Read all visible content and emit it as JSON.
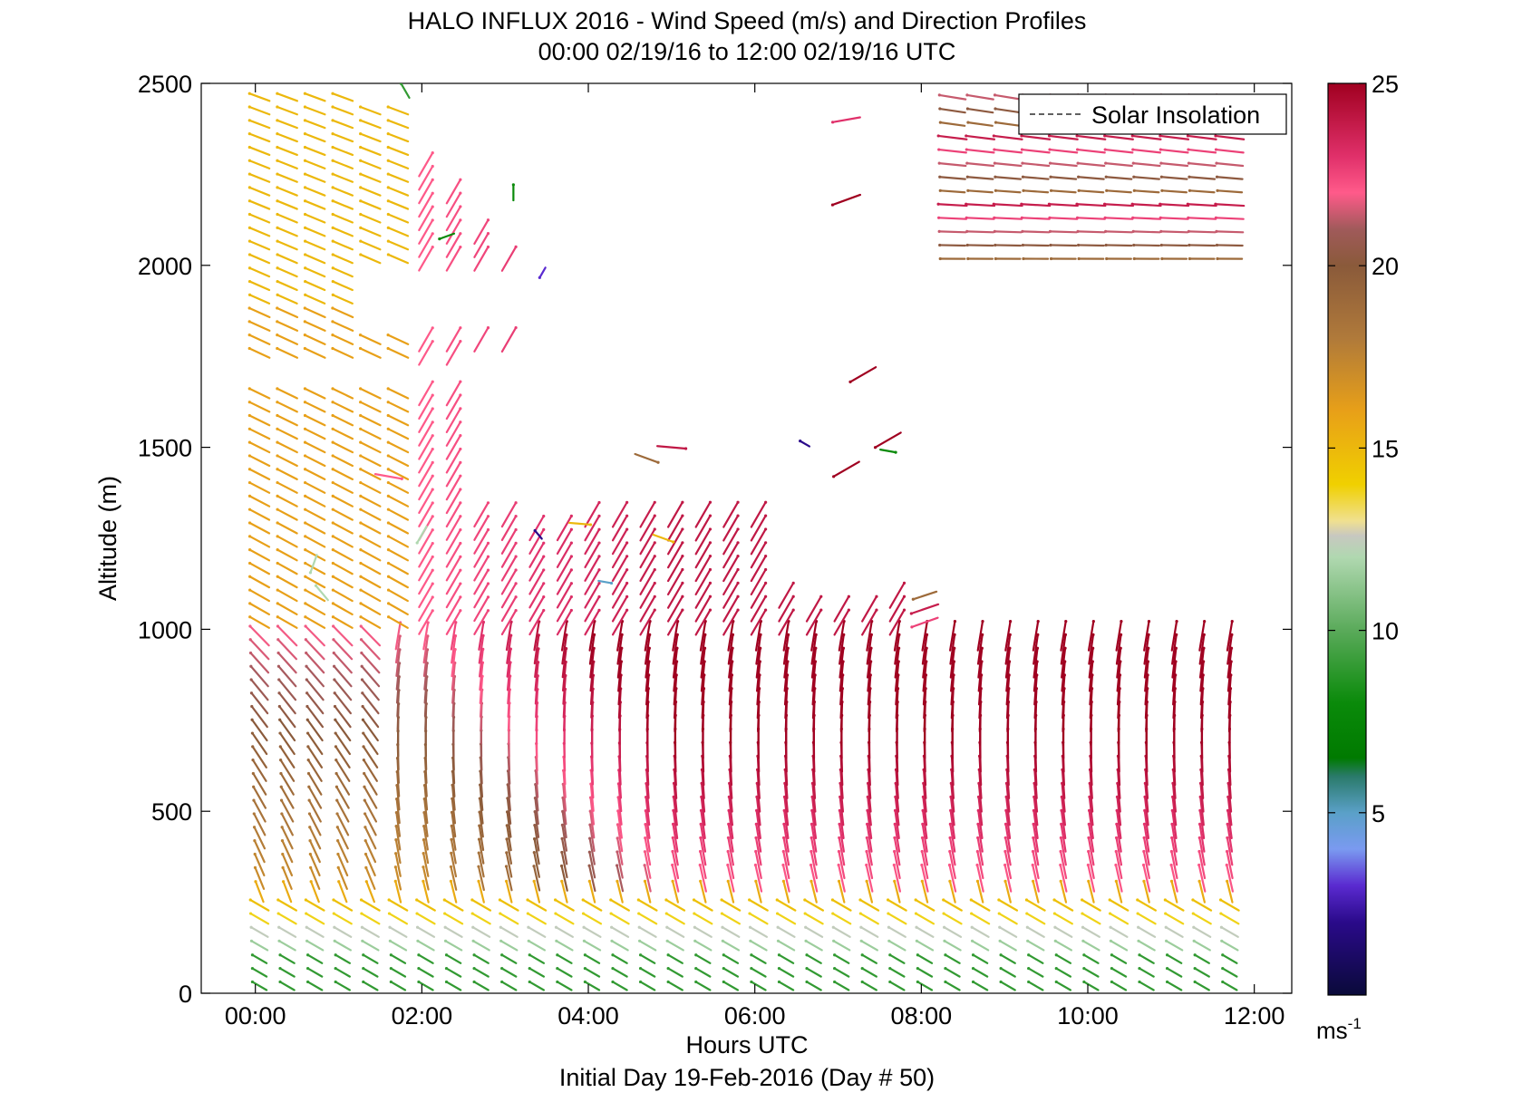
{
  "chart_data": {
    "type": "wind-barb-profile",
    "title": "HALO INFLUX 2016 - Wind Speed (m/s) and Direction Profiles",
    "subtitle": "00:00 02/19/16 to 12:00 02/19/16  UTC",
    "xlabel": "Hours UTC",
    "xlabel2": "Initial Day 19-Feb-2016 (Day # 50)",
    "ylabel": "Altitude (m)",
    "x_ticks": [
      {
        "value": 0,
        "label": "00:00"
      },
      {
        "value": 2,
        "label": "02:00"
      },
      {
        "value": 4,
        "label": "04:00"
      },
      {
        "value": 6,
        "label": "06:00"
      },
      {
        "value": 8,
        "label": "08:00"
      },
      {
        "value": 10,
        "label": "10:00"
      },
      {
        "value": 12,
        "label": "12:00"
      }
    ],
    "y_ticks": [
      {
        "value": 0,
        "label": "0"
      },
      {
        "value": 500,
        "label": "500"
      },
      {
        "value": 1000,
        "label": "1000"
      },
      {
        "value": 1500,
        "label": "1500"
      },
      {
        "value": 2000,
        "label": "2000"
      },
      {
        "value": 2500,
        "label": "2500"
      }
    ],
    "xlim": [
      -0.65,
      12.45
    ],
    "ylim": [
      0,
      2500
    ],
    "legend": {
      "label": "Solar Insolation",
      "placement": "top-right"
    },
    "colorbar": {
      "range": [
        0,
        25
      ],
      "ticks": [
        {
          "value": 5,
          "label": "5"
        },
        {
          "value": 10,
          "label": "10"
        },
        {
          "value": 15,
          "label": "15"
        },
        {
          "value": 20,
          "label": "20"
        },
        {
          "value": 25,
          "label": "25"
        }
      ],
      "unit_base": "ms",
      "unit_exp": "-1",
      "stops": [
        {
          "v": 0,
          "color": "#0a0a3a"
        },
        {
          "v": 2,
          "color": "#2a0a8a"
        },
        {
          "v": 3,
          "color": "#5a2ad0"
        },
        {
          "v": 4,
          "color": "#7a9af0"
        },
        {
          "v": 5,
          "color": "#5aa0c8"
        },
        {
          "v": 6,
          "color": "#2a7a6a"
        },
        {
          "v": 6.5,
          "color": "#007a00"
        },
        {
          "v": 8,
          "color": "#0a8a0a"
        },
        {
          "v": 10,
          "color": "#5aaa5a"
        },
        {
          "v": 12,
          "color": "#b0d8b0"
        },
        {
          "v": 12.6,
          "color": "#c8c8c0"
        },
        {
          "v": 13,
          "color": "#f0e090"
        },
        {
          "v": 14,
          "color": "#f0d000"
        },
        {
          "v": 16,
          "color": "#e8a018"
        },
        {
          "v": 18,
          "color": "#b07a3a"
        },
        {
          "v": 20,
          "color": "#8a5a3a"
        },
        {
          "v": 21,
          "color": "#a05a5a"
        },
        {
          "v": 22,
          "color": "#ff5a8a"
        },
        {
          "v": 23,
          "color": "#e0306a"
        },
        {
          "v": 25,
          "color": "#a00020"
        }
      ]
    },
    "profiles": {
      "time_start": 0.05,
      "time_step": 0.333,
      "count": 36,
      "altitude_step": 37,
      "gaps": [
        {
          "t0": 0,
          "t1": 12,
          "h0": 1650,
          "h1": 1750
        },
        {
          "t0": 2.6,
          "t1": 7.2,
          "h0": 1350,
          "h1": 1780
        },
        {
          "t0": 3.2,
          "t1": 7.6,
          "h0": 1780,
          "h1": 2500
        },
        {
          "t0": 7.6,
          "t1": 8.1,
          "h0": 1100,
          "h1": 2600
        },
        {
          "t0": 8.1,
          "t1": 12,
          "h0": 1000,
          "h1": 2000
        },
        {
          "t0": 1.2,
          "t1": 3.2,
          "h0": 1800,
          "h1": 2000
        }
      ]
    },
    "isolated_barbs": [
      {
        "t": 1.8,
        "h": 2480,
        "speed": 9,
        "dir": 330
      },
      {
        "t": 2.3,
        "h": 2080,
        "speed": 8,
        "dir": 250
      },
      {
        "t": 3.1,
        "h": 2200,
        "speed": 8,
        "dir": 0
      },
      {
        "t": 3.45,
        "h": 1980,
        "speed": 3,
        "dir": 210
      },
      {
        "t": 1.6,
        "h": 1420,
        "speed": 22,
        "dir": 100
      },
      {
        "t": 2.0,
        "h": 1260,
        "speed": 12,
        "dir": 210
      },
      {
        "t": 3.4,
        "h": 1260,
        "speed": 2,
        "dir": 320
      },
      {
        "t": 3.9,
        "h": 1290,
        "speed": 15,
        "dir": 95
      },
      {
        "t": 4.2,
        "h": 1130,
        "speed": 5,
        "dir": 100
      },
      {
        "t": 4.7,
        "h": 1470,
        "speed": 19,
        "dir": 110
      },
      {
        "t": 5.0,
        "h": 1500,
        "speed": 24,
        "dir": 95
      },
      {
        "t": 4.9,
        "h": 1250,
        "speed": 15,
        "dir": 110
      },
      {
        "t": 0.8,
        "h": 1100,
        "speed": 12,
        "dir": 320
      },
      {
        "t": 0.7,
        "h": 1180,
        "speed": 12,
        "dir": 200
      },
      {
        "t": 6.6,
        "h": 1510,
        "speed": 2,
        "dir": 300
      },
      {
        "t": 7.6,
        "h": 1490,
        "speed": 8,
        "dir": 100
      },
      {
        "t": 7.3,
        "h": 1700,
        "speed": 25,
        "dir": 240
      },
      {
        "t": 7.1,
        "h": 1440,
        "speed": 25,
        "dir": 240
      },
      {
        "t": 7.6,
        "h": 1520,
        "speed": 25,
        "dir": 240
      },
      {
        "t": 7.1,
        "h": 2400,
        "speed": 23,
        "dir": 260
      },
      {
        "t": 7.1,
        "h": 2180,
        "speed": 25,
        "dir": 250
      }
    ]
  }
}
